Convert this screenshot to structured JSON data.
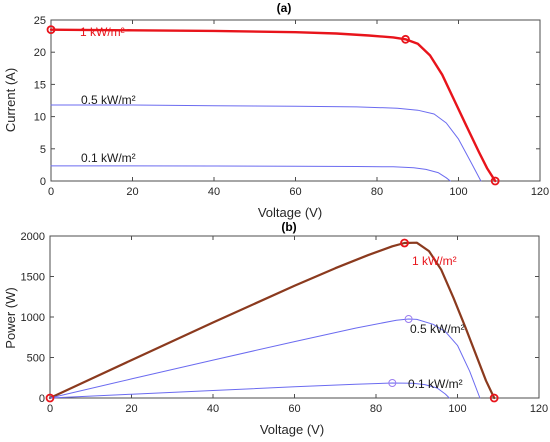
{
  "chart_data": [
    {
      "panel_label": "(a)",
      "type": "line",
      "xlabel": "Voltage (V)",
      "ylabel": "Current (A)",
      "xlim": [
        0,
        120
      ],
      "ylim": [
        0,
        25
      ],
      "xticks": [
        "0",
        "20",
        "40",
        "60",
        "80",
        "100",
        "120"
      ],
      "yticks": [
        "0",
        "5",
        "10",
        "15",
        "20",
        "25"
      ],
      "grid": false,
      "series": [
        {
          "name": "1 kW/m²",
          "color": "#e8141b",
          "x": [
            0,
            20,
            40,
            60,
            70,
            78,
            84,
            87,
            90,
            93,
            96,
            99,
            102,
            105,
            107,
            109
          ],
          "y": [
            23.5,
            23.4,
            23.3,
            23.1,
            22.9,
            22.6,
            22.3,
            22.0,
            21.3,
            19.5,
            16.5,
            12.5,
            8.5,
            4.5,
            2.0,
            0
          ],
          "markers": [
            {
              "x": 0,
              "y": 23.5
            },
            {
              "x": 87,
              "y": 22.0
            },
            {
              "x": 109,
              "y": 0
            }
          ]
        },
        {
          "name": "0.5 kW/m²",
          "color": "#6b6bf0",
          "x": [
            0,
            20,
            40,
            60,
            75,
            85,
            90,
            94,
            97,
            100,
            103,
            105.5
          ],
          "y": [
            11.8,
            11.8,
            11.7,
            11.6,
            11.5,
            11.3,
            11.0,
            10.4,
            9.0,
            6.5,
            3.0,
            0
          ]
        },
        {
          "name": "0.1 kW/m²",
          "color": "#6b6bf0",
          "x": [
            0,
            20,
            40,
            60,
            75,
            84,
            89,
            92,
            95,
            97,
            98
          ],
          "y": [
            2.35,
            2.35,
            2.33,
            2.3,
            2.25,
            2.2,
            2.05,
            1.8,
            1.3,
            0.5,
            0
          ]
        }
      ]
    },
    {
      "panel_label": "(b)",
      "type": "line",
      "xlabel": "Voltage (V)",
      "ylabel": "Power (W)",
      "xlim": [
        0,
        120
      ],
      "ylim": [
        0,
        2000
      ],
      "xticks": [
        "0",
        "20",
        "40",
        "60",
        "80",
        "100",
        "120"
      ],
      "yticks": [
        "0",
        "500",
        "1000",
        "1500",
        "2000"
      ],
      "grid": false,
      "series": [
        {
          "name": "1 kW/m²",
          "color": "#8b3a1e",
          "x": [
            0,
            20,
            40,
            60,
            70,
            78,
            84,
            87,
            90,
            93,
            96,
            99,
            102,
            105,
            107,
            109
          ],
          "y": [
            0,
            468,
            932,
            1386,
            1603,
            1763,
            1873,
            1914,
            1917,
            1814,
            1584,
            1238,
            867,
            473,
            214,
            0
          ],
          "markers": [
            {
              "x": 0,
              "y": 0
            },
            {
              "x": 87,
              "y": 1914
            },
            {
              "x": 109,
              "y": 0
            }
          ]
        },
        {
          "name": "0.5 kW/m²",
          "color": "#6b6bf0",
          "x": [
            0,
            20,
            40,
            60,
            75,
            85,
            88,
            90,
            94,
            97,
            100,
            103,
            105.5
          ],
          "y": [
            0,
            236,
            468,
            696,
            863,
            961,
            975,
            970,
            910,
            820,
            650,
            330,
            0
          ],
          "markers": [
            {
              "x": 88,
              "y": 975
            }
          ]
        },
        {
          "name": "0.1 kW/m²",
          "color": "#6b6bf0",
          "x": [
            0,
            20,
            40,
            60,
            75,
            84,
            89,
            92,
            95,
            97,
            98
          ],
          "y": [
            0,
            47,
            93,
            138,
            169,
            185,
            182,
            166,
            124,
            49,
            0
          ],
          "markers": [
            {
              "x": 84,
              "y": 185
            }
          ]
        }
      ]
    }
  ]
}
